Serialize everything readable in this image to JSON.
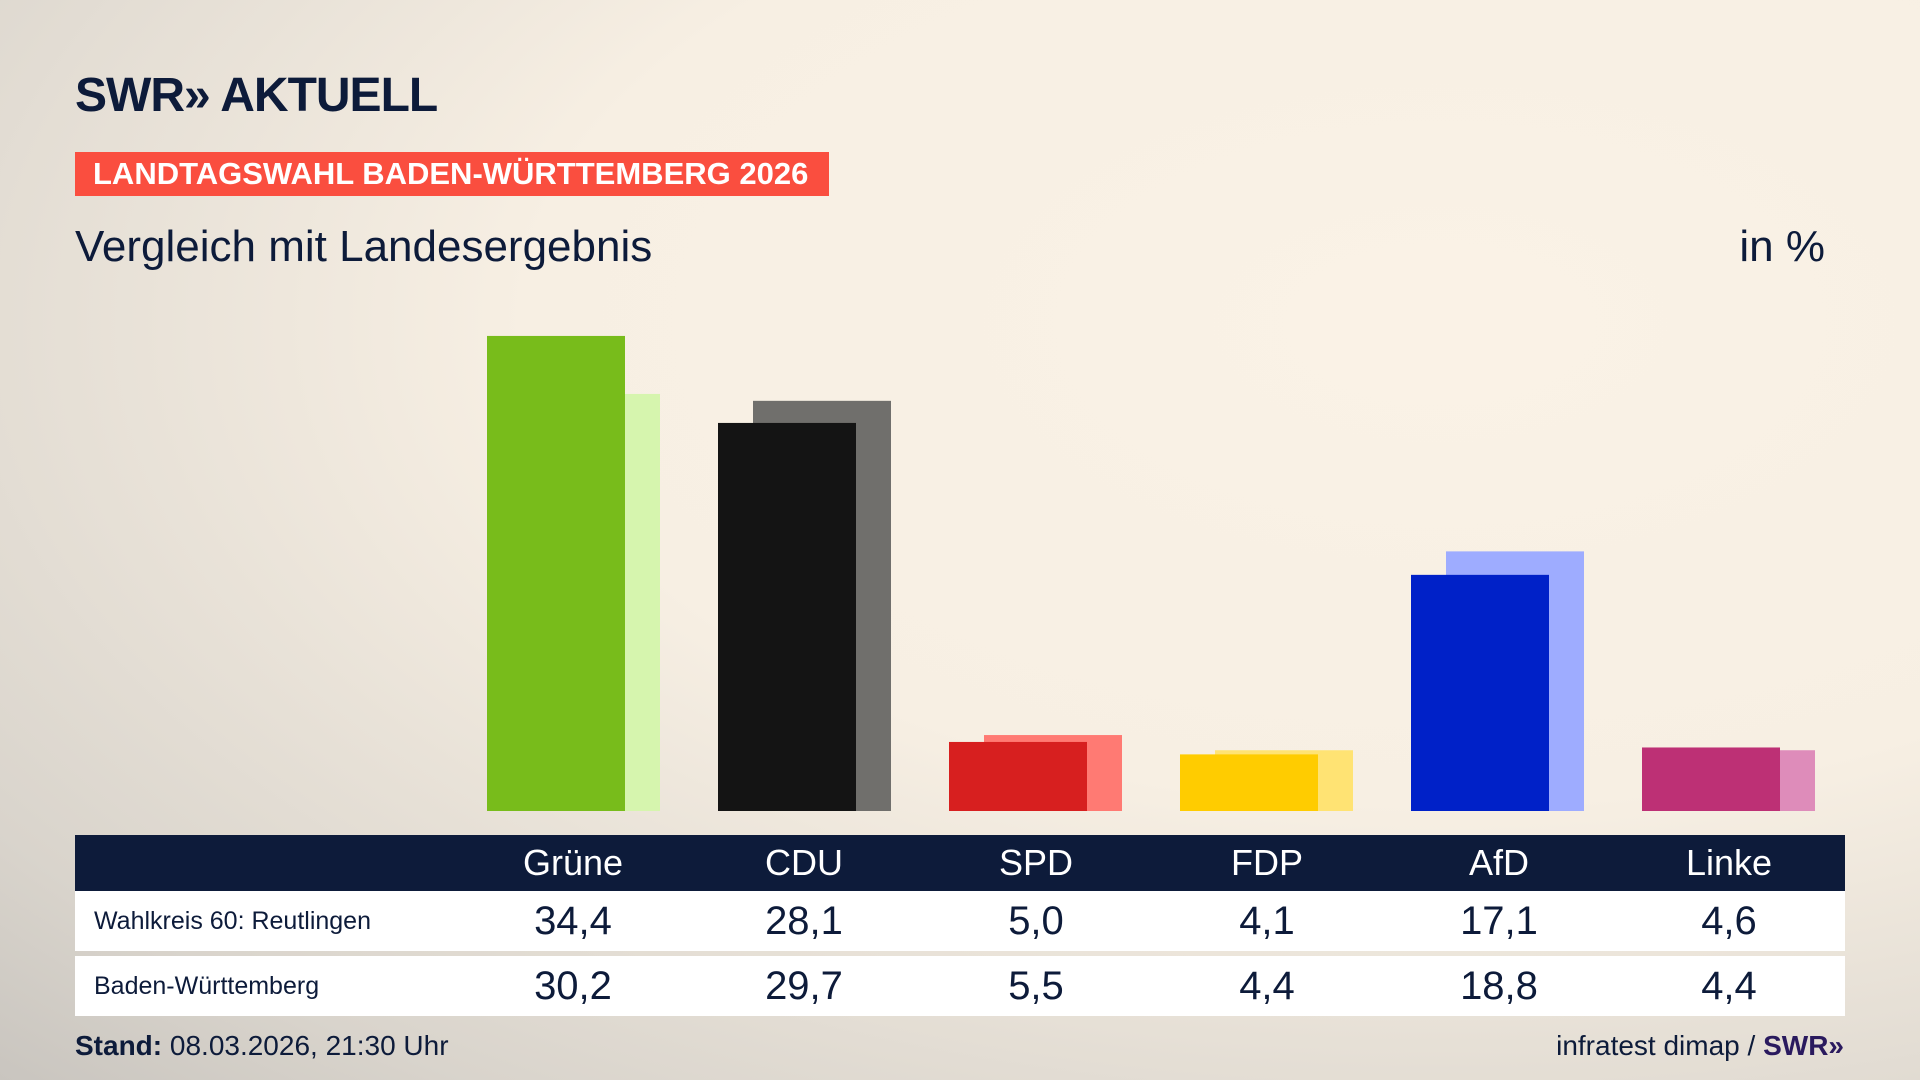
{
  "header": {
    "logo": "SWR» AKTUELL",
    "banner": "LANDTAGSWAHL BADEN-WÜRTTEMBERG 2026",
    "subtitle": "Vergleich mit Landesergebnis",
    "unit": "in %"
  },
  "chart_data": {
    "type": "bar",
    "categories": [
      "Grüne",
      "CDU",
      "SPD",
      "FDP",
      "AfD",
      "Linke"
    ],
    "series": [
      {
        "name": "Wahlkreis 60: Reutlingen",
        "values": [
          34.4,
          28.1,
          5.0,
          4.1,
          17.1,
          4.6
        ],
        "colors": [
          "#78bc1b",
          "#141414",
          "#d71f1f",
          "#ffcc00",
          "#0021c8",
          "#bd3075"
        ]
      },
      {
        "name": "Baden-Württemberg",
        "values": [
          30.2,
          29.7,
          5.5,
          4.4,
          18.8,
          4.4
        ],
        "colors": [
          "#d6f5ae",
          "#706f6c",
          "#ff7a73",
          "#ffe373",
          "#9eacff",
          "#de8cba"
        ]
      }
    ],
    "ylim": [
      0,
      35
    ],
    "grid": false
  },
  "table": {
    "headers": [
      "Grüne",
      "CDU",
      "SPD",
      "FDP",
      "AfD",
      "Linke"
    ],
    "rows": [
      {
        "label": "Wahlkreis 60: Reutlingen",
        "values": [
          "34,4",
          "28,1",
          "5,0",
          "4,1",
          "17,1",
          "4,6"
        ]
      },
      {
        "label": "Baden-Württemberg",
        "values": [
          "30,2",
          "29,7",
          "5,5",
          "4,4",
          "18,8",
          "4,4"
        ]
      }
    ]
  },
  "footer": {
    "stand_label": "Stand:",
    "stand_value": " 08.03.2026, 21:30 Uhr",
    "source": "infratest dimap / ",
    "source_logo": "SWR»"
  }
}
